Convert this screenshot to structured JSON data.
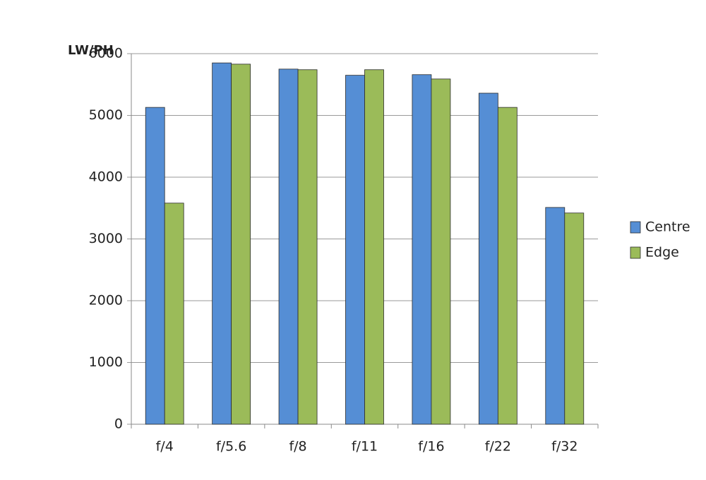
{
  "chart_data": {
    "type": "bar",
    "y_label": "LW/PH",
    "categories": [
      "f/4",
      "f/5.6",
      "f/8",
      "f/11",
      "f/16",
      "f/22",
      "f/32"
    ],
    "series": [
      {
        "name": "Centre",
        "color": "#558ed5",
        "values": [
          5130,
          5850,
          5750,
          5650,
          5660,
          5360,
          3510
        ]
      },
      {
        "name": "Edge",
        "color": "#9bbb59",
        "values": [
          3580,
          5830,
          5740,
          5740,
          5590,
          5130,
          3420
        ]
      }
    ],
    "ylim": [
      0,
      6000
    ],
    "yticks": [
      0,
      1000,
      2000,
      3000,
      4000,
      5000,
      6000
    ],
    "grid": true,
    "legend": "right"
  }
}
